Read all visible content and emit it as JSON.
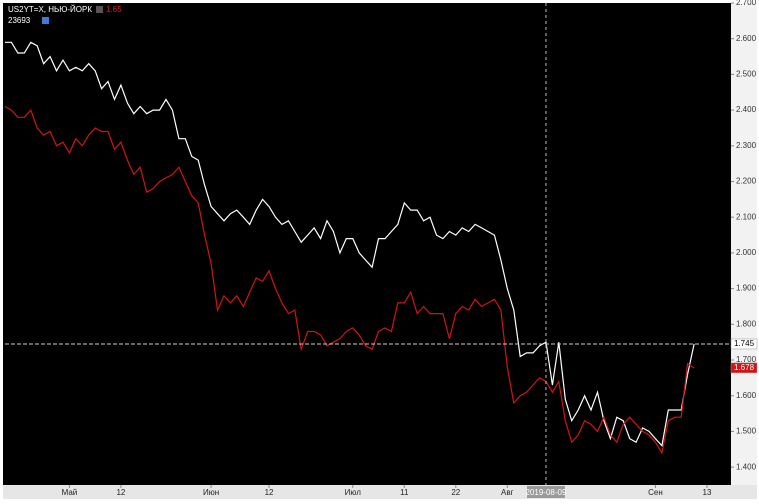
{
  "chart_data": {
    "type": "line",
    "header_value": 1.65,
    "categories": [
      null,
      null,
      null,
      null,
      null,
      null,
      null,
      null,
      null,
      null,
      "Май",
      null,
      null,
      null,
      null,
      null,
      null,
      null,
      "12",
      null,
      null,
      null,
      null,
      null,
      null,
      null,
      null,
      null,
      null,
      null,
      null,
      null,
      "Июн",
      null,
      null,
      null,
      null,
      null,
      null,
      null,
      null,
      "12",
      null,
      null,
      null,
      null,
      null,
      null,
      null,
      null,
      null,
      null,
      null,
      null,
      "Июл",
      null,
      null,
      null,
      null,
      null,
      null,
      null,
      "11",
      null,
      null,
      null,
      null,
      null,
      null,
      null,
      "22",
      null,
      null,
      null,
      null,
      null,
      null,
      null,
      "Авг",
      null,
      null,
      null,
      null,
      null,
      null,
      null,
      null,
      null,
      null,
      null,
      null,
      null,
      null,
      null,
      null,
      null,
      null,
      null,
      null,
      null,
      null,
      "Сен",
      null,
      null,
      null,
      null,
      null,
      null,
      null,
      "13"
    ],
    "crosshair": {
      "label": "2019-08-09",
      "category": 84
    },
    "series": [
      {
        "name": "US2YT=X, НЬЮ-ЙОРК",
        "color": "#ffffff",
        "values": [
          2.59,
          2.59,
          2.56,
          2.56,
          2.59,
          2.58,
          2.53,
          2.55,
          2.51,
          2.54,
          2.51,
          2.52,
          2.51,
          2.53,
          2.51,
          2.46,
          2.48,
          2.43,
          2.47,
          2.42,
          2.39,
          2.41,
          2.39,
          2.4,
          2.4,
          2.43,
          2.4,
          2.32,
          2.32,
          2.27,
          2.26,
          2.19,
          2.13,
          2.11,
          2.09,
          2.11,
          2.12,
          2.1,
          2.08,
          2.12,
          2.15,
          2.13,
          2.1,
          2.08,
          2.09,
          2.06,
          2.03,
          2.05,
          2.07,
          2.04,
          2.09,
          2.06,
          2.0,
          2.04,
          2.04,
          2.0,
          1.98,
          1.96,
          2.04,
          2.04,
          2.06,
          2.08,
          2.14,
          2.12,
          2.12,
          2.09,
          2.1,
          2.05,
          2.04,
          2.06,
          2.05,
          2.07,
          2.06,
          2.08,
          2.07,
          2.06,
          2.05,
          1.98,
          1.9,
          1.84,
          1.71,
          1.72,
          1.72,
          1.74,
          1.75,
          1.63,
          1.75,
          1.59,
          1.53,
          1.56,
          1.6,
          1.56,
          1.61,
          1.53,
          1.48,
          1.54,
          1.53,
          1.48,
          1.47,
          1.51,
          1.5,
          1.48,
          1.46,
          1.56,
          1.56,
          1.56,
          1.66,
          1.745,
          null,
          null
        ]
      },
      {
        "name": "23693",
        "color": "#d21414",
        "values": [
          2.41,
          2.4,
          2.38,
          2.38,
          2.4,
          2.35,
          2.33,
          2.34,
          2.3,
          2.31,
          2.28,
          2.32,
          2.3,
          2.33,
          2.35,
          2.34,
          2.34,
          2.29,
          2.31,
          2.26,
          2.22,
          2.24,
          2.17,
          2.18,
          2.2,
          2.21,
          2.22,
          2.24,
          2.2,
          2.16,
          2.14,
          2.05,
          1.97,
          1.84,
          1.88,
          1.86,
          1.88,
          1.85,
          1.89,
          1.93,
          1.92,
          1.95,
          1.9,
          1.86,
          1.83,
          1.84,
          1.73,
          1.78,
          1.78,
          1.77,
          1.74,
          1.75,
          1.76,
          1.78,
          1.79,
          1.77,
          1.74,
          1.73,
          1.78,
          1.79,
          1.78,
          1.86,
          1.86,
          1.89,
          1.83,
          1.85,
          1.83,
          1.83,
          1.83,
          1.76,
          1.83,
          1.85,
          1.84,
          1.87,
          1.85,
          1.86,
          1.87,
          1.84,
          1.68,
          1.58,
          1.6,
          1.61,
          1.63,
          1.65,
          1.64,
          1.61,
          1.64,
          1.53,
          1.47,
          1.49,
          1.53,
          1.52,
          1.5,
          1.54,
          1.49,
          1.47,
          1.52,
          1.54,
          1.52,
          1.5,
          1.49,
          1.47,
          1.44,
          1.53,
          1.54,
          1.54,
          1.69,
          1.678,
          null,
          null
        ]
      }
    ],
    "ylim": [
      1.35,
      2.7
    ],
    "yticks": [
      {
        "value": 2.7,
        "label": "2.700"
      },
      {
        "value": 2.6,
        "label": "2.600"
      },
      {
        "value": 2.5,
        "label": "2.500"
      },
      {
        "value": 2.4,
        "label": "2.400"
      },
      {
        "value": 2.3,
        "label": "2.300"
      },
      {
        "value": 2.2,
        "label": "2.200"
      },
      {
        "value": 2.1,
        "label": "2.100"
      },
      {
        "value": 2.0,
        "label": "2.000"
      },
      {
        "value": 1.9,
        "label": "1.900"
      },
      {
        "value": 1.8,
        "label": "1.800"
      },
      {
        "value": 1.7,
        "label": "1.700"
      },
      {
        "value": 1.6,
        "label": "1.600"
      },
      {
        "value": 1.5,
        "label": "1.500"
      },
      {
        "value": 1.4,
        "label": "1.400"
      }
    ]
  }
}
